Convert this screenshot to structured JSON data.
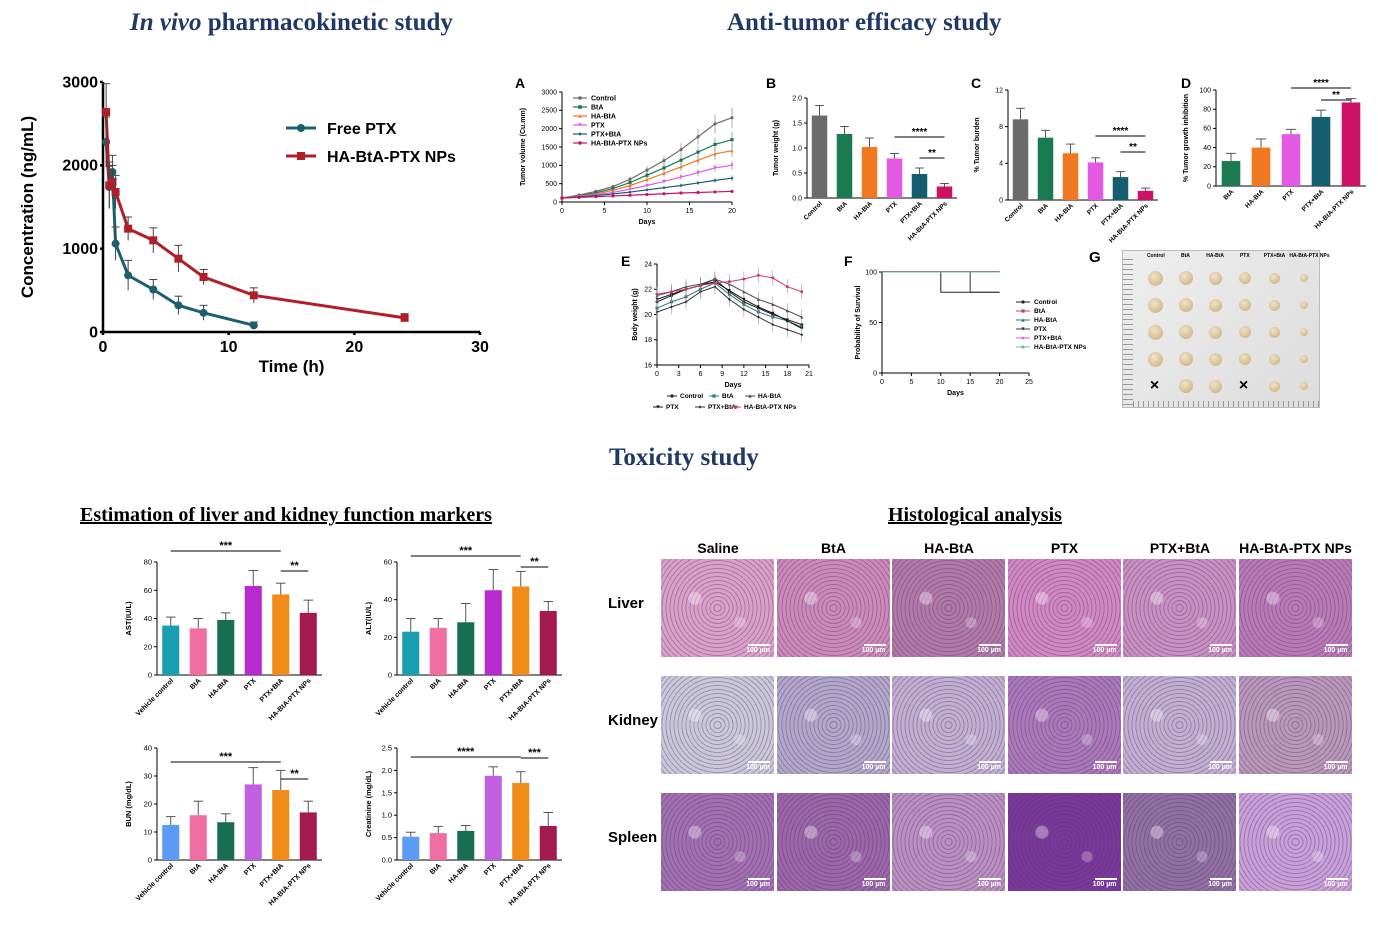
{
  "sections": {
    "pk_title_italic": "In vivo",
    "pk_title_rest": " pharmacokinetic study",
    "efficacy_title": "Anti-tumor efficacy study",
    "toxicity_title": "Toxicity study",
    "markers_title": "Estimation of liver and kidney function markers",
    "histology_title": "Histological analysis"
  },
  "colors": {
    "title_blue": "#1f3864",
    "free_ptx": "#1e5f6e",
    "ha_nps": "#b01e2a",
    "control": "#6b6b6b",
    "bta": "#1b7a4f",
    "ha_bta": "#f07820",
    "ptx": "#e25ae2",
    "ptx_bta": "#155e6f",
    "ha_bta_ptx": "#cc1166",
    "tox": [
      "#1a9fb0",
      "#f06ea0",
      "#1a6e50",
      "#b52bd0",
      "#f08c1a",
      "#a31a50"
    ],
    "tox_bun": [
      "#5b9bf5",
      "#f06ea0",
      "#1a6e50",
      "#c060e0",
      "#f08c1a",
      "#a31a50"
    ]
  },
  "chart_data": [
    {
      "id": "pk",
      "type": "line",
      "xlabel": "Time (h)",
      "ylabel": "Concentration (ng/mL)",
      "xlim": [
        0,
        30
      ],
      "ylim": [
        0,
        3000
      ],
      "xticks": [
        0,
        10,
        20,
        30
      ],
      "yticks": [
        0,
        1000,
        2000,
        3000
      ],
      "legend_position": "top-right",
      "series": [
        {
          "name": "Free PTX",
          "x": [
            0.25,
            0.5,
            0.75,
            1,
            2,
            4,
            6,
            8,
            12
          ],
          "y": [
            2280,
            1740,
            1920,
            1060,
            680,
            510,
            320,
            230,
            80
          ],
          "err": [
            300,
            250,
            200,
            200,
            180,
            120,
            110,
            90,
            40
          ]
        },
        {
          "name": "HA-BtA-PTX NPs",
          "x": [
            0.25,
            0.5,
            0.75,
            1,
            2,
            4,
            6,
            8,
            12,
            24
          ],
          "y": [
            2640,
            1760,
            1800,
            1680,
            1240,
            1100,
            880,
            660,
            440,
            170
          ],
          "err": [
            340,
            280,
            200,
            200,
            140,
            150,
            160,
            90,
            90,
            50
          ]
        }
      ]
    },
    {
      "id": "A",
      "panel_label": "A",
      "type": "line",
      "xlabel": "Days",
      "ylabel": "Tumor volume (Cu.mm)",
      "xlim": [
        0,
        20
      ],
      "ylim": [
        0,
        3000
      ],
      "xticks": [
        0,
        5,
        10,
        15,
        20
      ],
      "yticks": [
        0,
        500,
        1000,
        1500,
        2000,
        2500,
        3000
      ],
      "legend_position": "top-left",
      "x": [
        0,
        2,
        4,
        6,
        8,
        10,
        12,
        14,
        16,
        18,
        20
      ],
      "series": [
        {
          "name": "Control",
          "y": [
            110,
            190,
            290,
            420,
            620,
            870,
            1130,
            1430,
            1780,
            2130,
            2300
          ]
        },
        {
          "name": "BtA",
          "y": [
            110,
            170,
            250,
            370,
            530,
            730,
            930,
            1140,
            1360,
            1570,
            1700
          ]
        },
        {
          "name": "HA-BtA",
          "y": [
            110,
            160,
            220,
            320,
            450,
            610,
            780,
            960,
            1140,
            1310,
            1400
          ]
        },
        {
          "name": "PTX",
          "y": [
            110,
            150,
            200,
            260,
            350,
            450,
            560,
            680,
            800,
            930,
            1000
          ]
        },
        {
          "name": "PTX+BtA",
          "y": [
            110,
            140,
            175,
            220,
            270,
            330,
            390,
            450,
            520,
            590,
            650
          ]
        },
        {
          "name": "HA-BtA-PTX NPs",
          "y": [
            110,
            125,
            145,
            165,
            185,
            205,
            225,
            245,
            260,
            275,
            290
          ]
        }
      ]
    },
    {
      "id": "B",
      "panel_label": "B",
      "type": "bar",
      "ylabel": "Tumor weight (g)",
      "ylim": [
        0,
        2.0
      ],
      "yticks": [
        0.0,
        0.5,
        1.0,
        1.5,
        2.0
      ],
      "categories": [
        "Control",
        "BtA",
        "HA-BtA",
        "PTX",
        "PTX+BtA",
        "HA-BtA-PTX NPs"
      ],
      "values": [
        1.65,
        1.28,
        1.02,
        0.79,
        0.48,
        0.23
      ],
      "errors": [
        0.2,
        0.15,
        0.18,
        0.1,
        0.12,
        0.06
      ],
      "sig": [
        {
          "from": 3,
          "to": 5,
          "label": "****"
        },
        {
          "from": 4,
          "to": 5,
          "label": "**"
        }
      ]
    },
    {
      "id": "C",
      "panel_label": "C",
      "type": "bar",
      "ylabel": "% Tumor burden",
      "ylim": [
        0,
        12
      ],
      "yticks": [
        0,
        4,
        8,
        12
      ],
      "categories": [
        "Control",
        "BtA",
        "HA-BtA",
        "PTX",
        "PTX+BtA",
        "HA-BtA-PTX NPs"
      ],
      "values": [
        8.8,
        6.8,
        5.1,
        4.1,
        2.5,
        1.0
      ],
      "errors": [
        1.2,
        0.8,
        1.0,
        0.5,
        0.6,
        0.3
      ],
      "sig": [
        {
          "from": 3,
          "to": 5,
          "label": "****"
        },
        {
          "from": 4,
          "to": 5,
          "label": "**"
        }
      ]
    },
    {
      "id": "D",
      "panel_label": "D",
      "type": "bar",
      "ylabel": "% Tumor growth inhibition",
      "ylim": [
        0,
        100
      ],
      "yticks": [
        0,
        20,
        40,
        60,
        80,
        100
      ],
      "categories": [
        "BtA",
        "HA-BtA",
        "PTX",
        "PTX+BtA",
        "HA-BtA-PTX NPs"
      ],
      "values": [
        26,
        40,
        54,
        72,
        87
      ],
      "errors": [
        8,
        9,
        5,
        7,
        4
      ],
      "sig": [
        {
          "from": 2,
          "to": 4,
          "label": "****"
        },
        {
          "from": 3,
          "to": 4,
          "label": "**"
        }
      ]
    },
    {
      "id": "E",
      "panel_label": "E",
      "type": "line",
      "xlabel": "Days",
      "ylabel": "Body weight (g)",
      "xlim": [
        0,
        21
      ],
      "ylim": [
        16,
        24
      ],
      "xticks": [
        0,
        3,
        6,
        9,
        12,
        15,
        18,
        21
      ],
      "yticks": [
        16,
        18,
        20,
        22,
        24
      ],
      "legend_position": "bottom",
      "x": [
        0,
        2,
        4,
        6,
        8,
        10,
        12,
        14,
        16,
        18,
        20
      ],
      "series": [
        {
          "name": "Control",
          "y": [
            21.0,
            21.5,
            22.0,
            22.3,
            22.8,
            21.8,
            21.0,
            20.5,
            20.0,
            19.6,
            19.2
          ]
        },
        {
          "name": "BtA",
          "y": [
            20.5,
            21.0,
            21.4,
            22.0,
            22.5,
            21.6,
            20.8,
            20.2,
            19.8,
            19.5,
            19.0
          ]
        },
        {
          "name": "HA-BtA",
          "y": [
            21.5,
            21.8,
            22.2,
            22.4,
            22.8,
            22.4,
            21.8,
            21.2,
            20.8,
            20.3,
            19.8
          ]
        },
        {
          "name": "PTX",
          "y": [
            21.2,
            21.6,
            22.0,
            22.3,
            22.6,
            21.9,
            21.2,
            20.6,
            20.1,
            19.5,
            18.9
          ]
        },
        {
          "name": "PTX+BtA",
          "y": [
            20.2,
            20.6,
            21.0,
            21.8,
            22.2,
            21.2,
            20.4,
            19.8,
            19.2,
            18.8,
            18.4
          ]
        },
        {
          "name": "HA-BtA-PTX NPs",
          "y": [
            21.6,
            21.8,
            22.0,
            22.3,
            22.5,
            22.6,
            22.8,
            23.1,
            22.9,
            22.2,
            21.8
          ]
        }
      ]
    },
    {
      "id": "F",
      "panel_label": "F",
      "type": "line",
      "xlabel": "Days",
      "ylabel": "Probability of Survival",
      "xlim": [
        0,
        25
      ],
      "ylim": [
        0,
        100
      ],
      "xticks": [
        0,
        5,
        10,
        15,
        20,
        25
      ],
      "yticks": [
        0,
        50,
        100
      ],
      "legend_position": "right",
      "series": [
        {
          "name": "Control",
          "x": [
            0,
            10,
            10,
            20
          ],
          "y": [
            100,
            100,
            80,
            80
          ]
        },
        {
          "name": "BtA",
          "x": [
            0,
            20
          ],
          "y": [
            100,
            100
          ]
        },
        {
          "name": "HA-BtA",
          "x": [
            0,
            20
          ],
          "y": [
            100,
            100
          ]
        },
        {
          "name": "PTX",
          "x": [
            0,
            15,
            15,
            20
          ],
          "y": [
            100,
            100,
            80,
            80
          ]
        },
        {
          "name": "PTX+BtA",
          "x": [
            0,
            20
          ],
          "y": [
            100,
            100
          ]
        },
        {
          "name": "HA-BtA-PTX NPs",
          "x": [
            0,
            20
          ],
          "y": [
            100,
            100
          ]
        }
      ]
    },
    {
      "id": "AST",
      "type": "bar",
      "ylabel": "AST(IU/L)",
      "ylim": [
        0,
        80
      ],
      "yticks": [
        0,
        20,
        40,
        60,
        80
      ],
      "categories": [
        "Vehicle control",
        "BtA",
        "HA-BtA",
        "PTX",
        "PTX+BtA",
        "HA-BtA-PTX NPs"
      ],
      "values": [
        35,
        33,
        39,
        63,
        57,
        44
      ],
      "errors": [
        6,
        7,
        5,
        11,
        8,
        9
      ],
      "sig": [
        {
          "from": 0,
          "to": 4,
          "label": "***"
        },
        {
          "from": 4,
          "to": 5,
          "label": "**"
        }
      ]
    },
    {
      "id": "ALT",
      "type": "bar",
      "ylabel": "ALT(IU/L)",
      "ylim": [
        0,
        60
      ],
      "yticks": [
        0,
        20,
        40,
        60
      ],
      "categories": [
        "Vehicle control",
        "BtA",
        "HA-BtA",
        "PTX",
        "PTX+BtA",
        "HA-BtA-PTX NPs"
      ],
      "values": [
        23,
        25,
        28,
        45,
        47,
        34
      ],
      "errors": [
        7,
        5,
        10,
        11,
        8,
        5
      ],
      "sig": [
        {
          "from": 0,
          "to": 4,
          "label": "***"
        },
        {
          "from": 4,
          "to": 5,
          "label": "**"
        }
      ]
    },
    {
      "id": "BUN",
      "type": "bar",
      "ylabel": "BUN (mg/dL)",
      "ylim": [
        0,
        40
      ],
      "yticks": [
        0,
        10,
        20,
        30,
        40
      ],
      "categories": [
        "Vehicle control",
        "BtA",
        "HA-BtA",
        "PTX",
        "PTX+BtA",
        "HA-BtA-PTX NPs"
      ],
      "values": [
        12.5,
        16,
        13.5,
        27,
        25,
        17
      ],
      "errors": [
        3,
        5,
        3,
        6,
        7,
        4
      ],
      "sig": [
        {
          "from": 0,
          "to": 4,
          "label": "***"
        },
        {
          "from": 4,
          "to": 5,
          "label": "**"
        }
      ]
    },
    {
      "id": "Creatinine",
      "type": "bar",
      "ylabel": "Creatinine (mg/dL)",
      "ylim": [
        0,
        2.5
      ],
      "yticks": [
        0.0,
        0.5,
        1.0,
        1.5,
        2.0,
        2.5
      ],
      "categories": [
        "Vehicle control",
        "BtA",
        "HA-BtA",
        "PTX",
        "PTX+BtA",
        "HA-BtA-PTX NPs"
      ],
      "values": [
        0.52,
        0.6,
        0.65,
        1.88,
        1.72,
        0.76
      ],
      "errors": [
        0.1,
        0.15,
        0.12,
        0.2,
        0.25,
        0.3
      ],
      "sig": [
        {
          "from": 0,
          "to": 4,
          "label": "****"
        },
        {
          "from": 4,
          "to": 5,
          "label": "***"
        }
      ]
    }
  ],
  "panel_g": {
    "panel_label": "G",
    "columns": [
      "Control",
      "BtA",
      "HA-BtA",
      "PTX",
      "PTX+BtA",
      "HA-BtA-PTX NPs"
    ],
    "missing_mark": "×"
  },
  "histology": {
    "columns": [
      "Saline",
      "BtA",
      "HA-BtA",
      "PTX",
      "PTX+BtA",
      "HA-BtA-PTX NPs"
    ],
    "rows": [
      "Liver",
      "Kidney",
      "Spleen"
    ],
    "scale_label": "100 µm"
  }
}
